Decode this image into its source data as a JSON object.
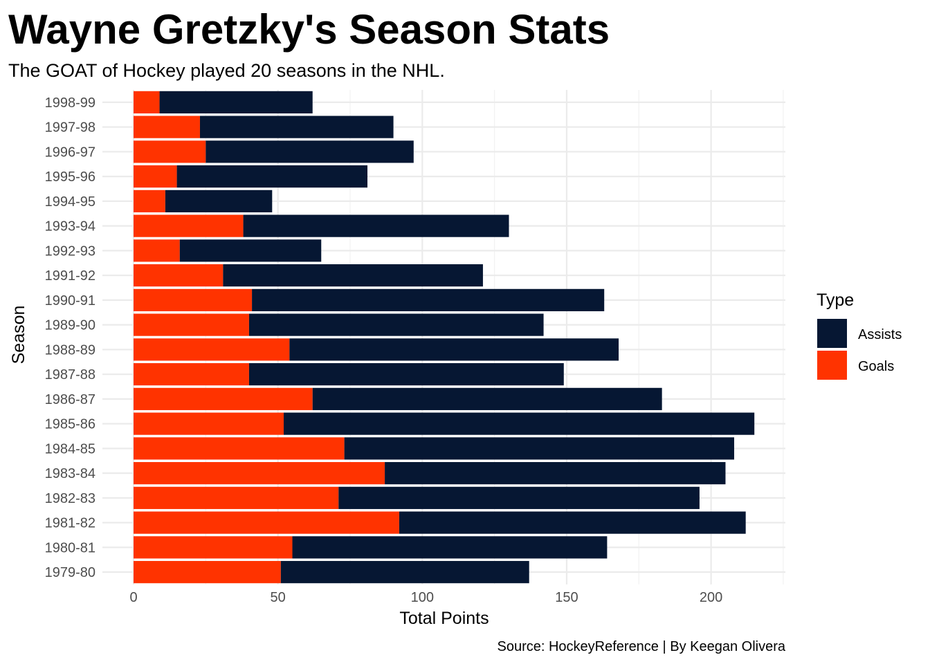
{
  "chart_data": {
    "type": "bar",
    "orientation": "horizontal",
    "stacked": true,
    "title": "Wayne Gretzky's Season Stats",
    "subtitle": "The GOAT of Hockey played 20 seasons in the NHL.",
    "xlabel": "Total Points",
    "ylabel": "Season",
    "caption": "Source: HockeyReference | By Keegan Olivera",
    "xlim": [
      0,
      225
    ],
    "xticks": [
      0,
      50,
      100,
      150,
      200
    ],
    "grid": true,
    "legend": {
      "title": "Type",
      "position": "right"
    },
    "categories": [
      "1979-80",
      "1980-81",
      "1981-82",
      "1982-83",
      "1983-84",
      "1984-85",
      "1985-86",
      "1986-87",
      "1987-88",
      "1988-89",
      "1989-90",
      "1990-91",
      "1991-92",
      "1992-93",
      "1993-94",
      "1994-95",
      "1995-96",
      "1996-97",
      "1997-98",
      "1998-99"
    ],
    "series": [
      {
        "name": "Goals",
        "color": "#ff3300",
        "values": [
          51,
          55,
          92,
          71,
          87,
          73,
          52,
          62,
          40,
          54,
          40,
          41,
          31,
          16,
          38,
          11,
          15,
          25,
          23,
          9
        ]
      },
      {
        "name": "Assists",
        "color": "#061733",
        "values": [
          86,
          109,
          120,
          125,
          118,
          135,
          163,
          121,
          109,
          114,
          102,
          122,
          90,
          49,
          92,
          37,
          66,
          72,
          67,
          53
        ]
      }
    ],
    "legend_order": [
      "Assists",
      "Goals"
    ]
  }
}
